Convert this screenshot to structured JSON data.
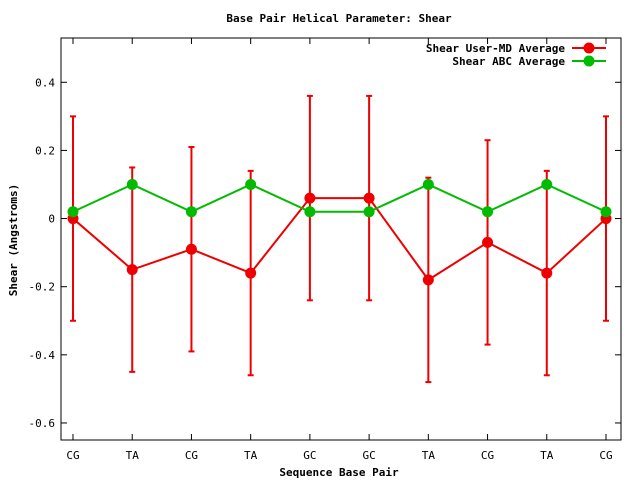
{
  "chart_data": {
    "type": "line",
    "title": "Base Pair Helical Parameter: Shear",
    "xlabel": "Sequence Base Pair",
    "ylabel": "Shear (Angstroms)",
    "categories": [
      "CG",
      "TA",
      "CG",
      "TA",
      "GC",
      "GC",
      "TA",
      "CG",
      "TA",
      "CG"
    ],
    "ylim": [
      -0.65,
      0.53
    ],
    "yticks": [
      0.4,
      0.2,
      0,
      -0.2,
      -0.4,
      -0.6
    ],
    "ytick_labels": [
      "0.4",
      "0.2",
      "0",
      "-0.2",
      "-0.4",
      "-0.6"
    ],
    "grid": false,
    "legend_position": "top-right",
    "series": [
      {
        "name": "Shear User-MD Average",
        "color": "#ee0000",
        "values": [
          0.0,
          -0.15,
          -0.09,
          -0.16,
          0.06,
          0.06,
          -0.18,
          -0.07,
          -0.16,
          0.0
        ],
        "error_low": [
          -0.3,
          -0.45,
          -0.39,
          -0.46,
          -0.24,
          -0.24,
          -0.48,
          -0.37,
          -0.46,
          -0.3
        ],
        "error_high": [
          0.3,
          0.15,
          0.21,
          0.14,
          0.36,
          0.36,
          0.12,
          0.23,
          0.14,
          0.3
        ]
      },
      {
        "name": "Shear ABC Average",
        "color": "#00bb00",
        "values": [
          0.02,
          0.1,
          0.02,
          0.1,
          0.02,
          0.02,
          0.1,
          0.02,
          0.1,
          0.02
        ]
      }
    ]
  }
}
